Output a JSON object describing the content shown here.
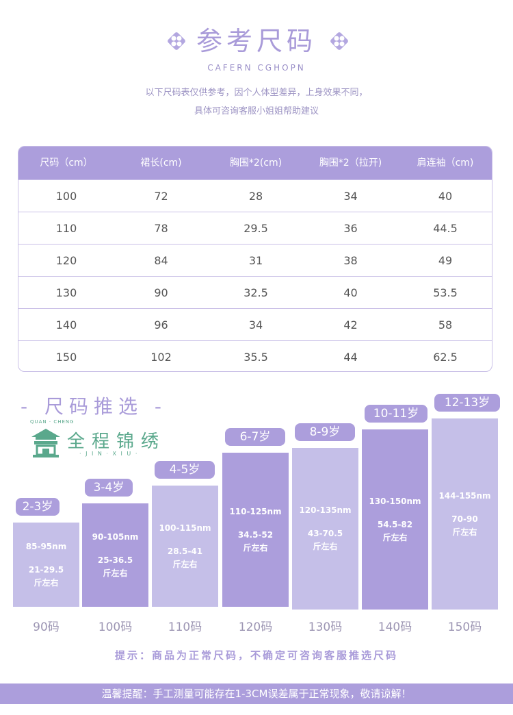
{
  "header": {
    "title": "参考尺码",
    "subtitle": "CAFERN CGHOPN",
    "note_line1": "以下尺码表仅供参考，因个人体型差异，上身效果不同，",
    "note_line2": "具体可咨询客服小姐姐帮助建议"
  },
  "table": {
    "headers": [
      "尺码（cm）",
      "裙长(cm)",
      "胸围*2(cm)",
      "胸围*2（拉开)",
      "肩连袖（cm)"
    ],
    "rows": [
      [
        "100",
        "72",
        "28",
        "34",
        "40"
      ],
      [
        "110",
        "78",
        "29.5",
        "36",
        "44.5"
      ],
      [
        "120",
        "84",
        "31",
        "38",
        "49"
      ],
      [
        "130",
        "90",
        "32.5",
        "40",
        "53.5"
      ],
      [
        "140",
        "96",
        "34",
        "42",
        "58"
      ],
      [
        "150",
        "102",
        "35.5",
        "44",
        "62.5"
      ]
    ]
  },
  "recommend": {
    "title": "- 尺码推选 -",
    "logo_top": "QUAN · CHENG",
    "logo_name": "全程锦绣",
    "logo_bottom": "· J I N · X I U ·",
    "items": [
      {
        "age": "2-3岁",
        "height": "85-95nm",
        "weight": "21-29.5",
        "unit": "斤左右",
        "size": "90码"
      },
      {
        "age": "3-4岁",
        "height": "90-105nm",
        "weight": "25-36.5",
        "unit": "斤左右",
        "size": "100码"
      },
      {
        "age": "4-5岁",
        "height": "100-115nm",
        "weight": "28.5-41",
        "unit": "斤左右",
        "size": "110码"
      },
      {
        "age": "6-7岁",
        "height": "110-125nm",
        "weight": "34.5-52",
        "unit": "斤左右",
        "size": "120码"
      },
      {
        "age": "8-9岁",
        "height": "120-135nm",
        "weight": "43-70.5",
        "unit": "斤左右",
        "size": "130码"
      },
      {
        "age": "10-11岁",
        "height": "130-150nm",
        "weight": "54.5-82",
        "unit": "斤左右",
        "size": "140码"
      },
      {
        "age": "12-13岁",
        "height": "144-155nm",
        "weight": "70-90",
        "unit": "斤左右",
        "size": "150码"
      }
    ],
    "tip": "提示：商品为正常尺码，不确定可咨询客服推选尺码"
  },
  "footer": {
    "text": "温馨提醒：手工测量可能存在1-3CM误差属于正常现象，敬请谅解！"
  },
  "colors": {
    "accent": "#ac9edc",
    "bar_light": "#c5bfe8",
    "bar_dark": "#ac9edc",
    "logo_green": "#5aa88c"
  }
}
